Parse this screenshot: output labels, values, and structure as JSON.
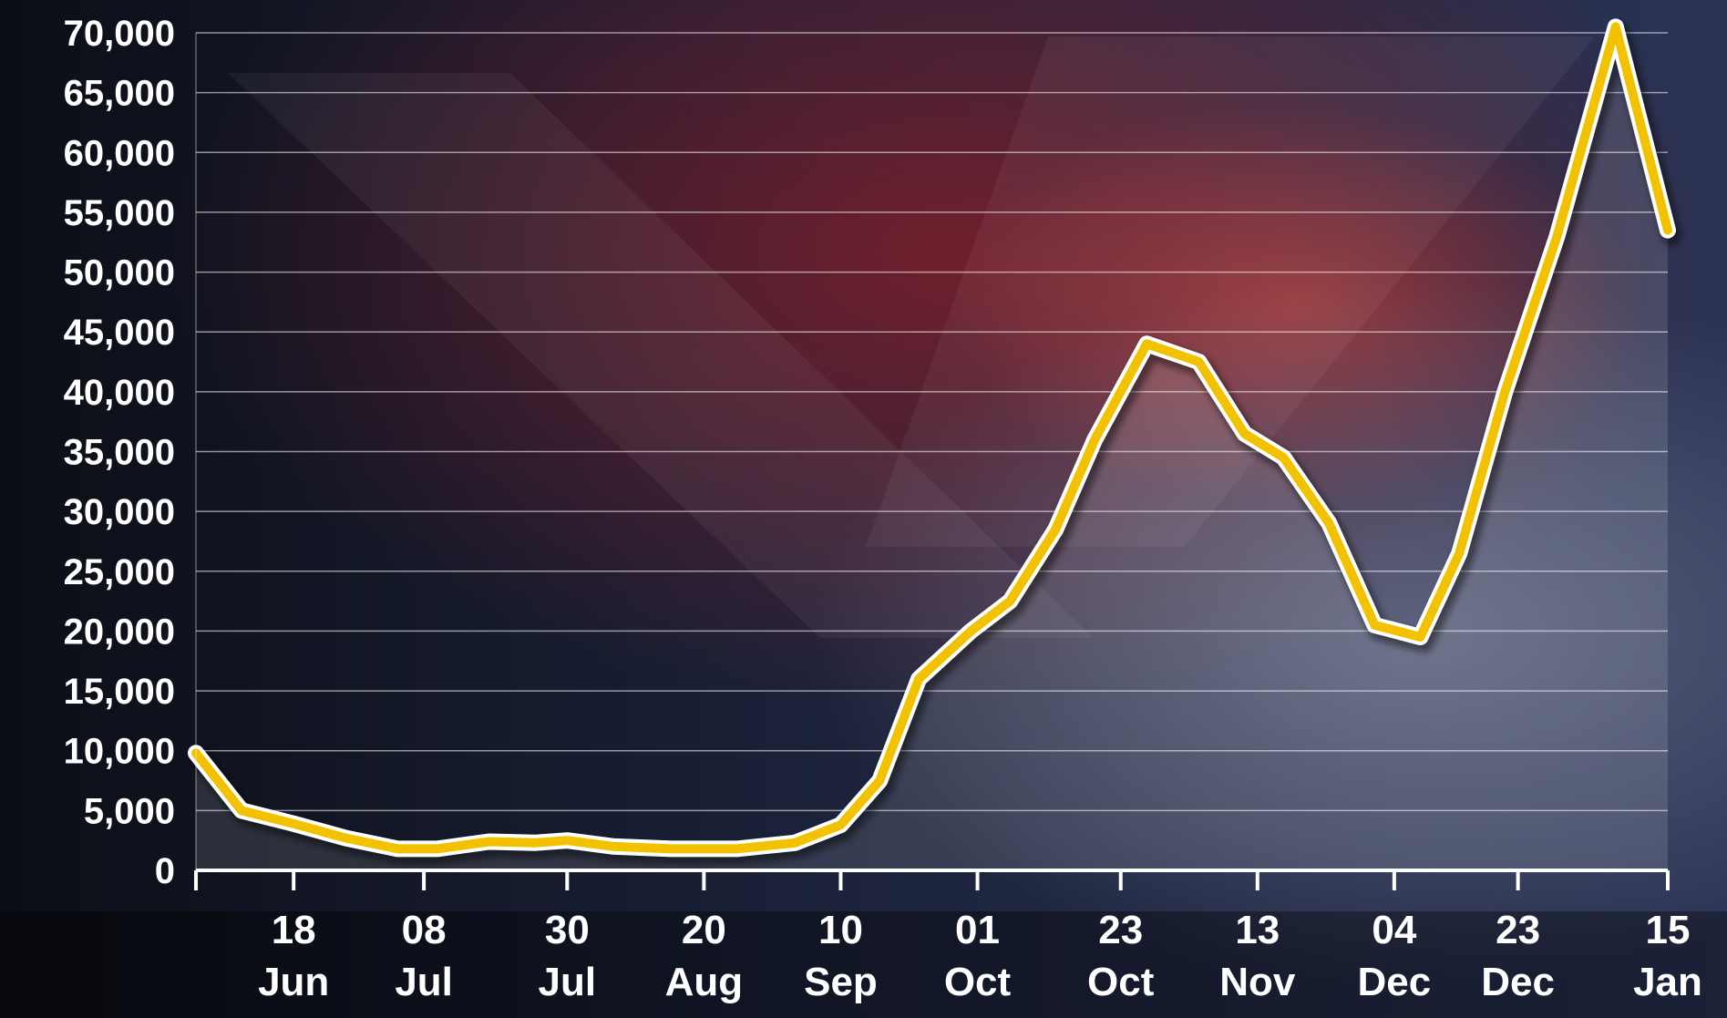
{
  "chart_data": {
    "type": "line",
    "title": "",
    "xlabel": "",
    "ylabel": "",
    "ylim": [
      0,
      70000
    ],
    "yticks": [
      "0",
      "5,000",
      "10,000",
      "15,000",
      "20,000",
      "25,000",
      "30,000",
      "35,000",
      "40,000",
      "45,000",
      "50,000",
      "55,000",
      "60,000",
      "65,000",
      "70,000"
    ],
    "ytick_values": [
      0,
      5000,
      10000,
      15000,
      20000,
      25000,
      30000,
      35000,
      40000,
      45000,
      50000,
      55000,
      60000,
      65000,
      70000
    ],
    "xticks": [
      {
        "day": "18",
        "month": "Jun"
      },
      {
        "day": "08",
        "month": "Jul"
      },
      {
        "day": "30",
        "month": "Jul"
      },
      {
        "day": "20",
        "month": "Aug"
      },
      {
        "day": "10",
        "month": "Sep"
      },
      {
        "day": "01",
        "month": "Oct"
      },
      {
        "day": "23",
        "month": "Oct"
      },
      {
        "day": "13",
        "month": "Nov"
      },
      {
        "day": "04",
        "month": "Dec"
      },
      {
        "day": "23",
        "month": "Dec"
      },
      {
        "day": "15",
        "month": "Jan"
      }
    ],
    "grid": true,
    "series": [
      {
        "color": "#f2c200",
        "points": [
          [
            "2020-06-03",
            9800
          ],
          [
            "2020-06-10",
            5000
          ],
          [
            "2020-06-18",
            3900
          ],
          [
            "2020-06-26",
            2700
          ],
          [
            "2020-07-04",
            1800
          ],
          [
            "2020-07-10",
            1800
          ],
          [
            "2020-07-18",
            2400
          ],
          [
            "2020-07-25",
            2300
          ],
          [
            "2020-07-30",
            2500
          ],
          [
            "2020-08-06",
            2000
          ],
          [
            "2020-08-15",
            1800
          ],
          [
            "2020-08-25",
            1800
          ],
          [
            "2020-09-03",
            2300
          ],
          [
            "2020-09-10",
            3800
          ],
          [
            "2020-09-16",
            7500
          ],
          [
            "2020-09-22",
            16000
          ],
          [
            "2020-09-30",
            20000
          ],
          [
            "2020-10-06",
            22500
          ],
          [
            "2020-10-13",
            28500
          ],
          [
            "2020-10-19",
            36000
          ],
          [
            "2020-10-27",
            44000
          ],
          [
            "2020-11-04",
            42500
          ],
          [
            "2020-11-11",
            36500
          ],
          [
            "2020-11-17",
            34500
          ],
          [
            "2020-11-24",
            29000
          ],
          [
            "2020-12-01",
            20500
          ],
          [
            "2020-12-08",
            19500
          ],
          [
            "2020-12-14",
            26500
          ],
          [
            "2020-12-21",
            40000
          ],
          [
            "2020-12-29",
            53000
          ],
          [
            "2021-01-07",
            70500
          ],
          [
            "2021-01-15",
            53500
          ]
        ]
      }
    ]
  }
}
